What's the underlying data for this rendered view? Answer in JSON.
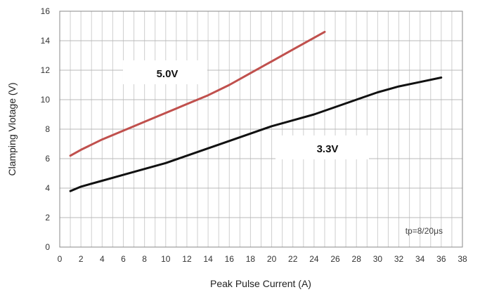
{
  "chart_data": {
    "type": "line",
    "title": "",
    "xlabel": "Peak Pulse Current (A)",
    "ylabel": "Clamping Vlotage (V)",
    "xlim": [
      0,
      38
    ],
    "ylim": [
      0,
      16
    ],
    "x_ticks": [
      0,
      2,
      4,
      6,
      8,
      10,
      12,
      14,
      16,
      18,
      20,
      22,
      24,
      26,
      28,
      30,
      32,
      34,
      36,
      38
    ],
    "y_ticks": [
      0,
      2,
      4,
      6,
      8,
      10,
      12,
      14,
      16
    ],
    "x_minor_step": 1,
    "grid": true,
    "annotation": "tp=8/20μs",
    "series": [
      {
        "name": "5.0V",
        "color": "#c0504d",
        "x": [
          1,
          2,
          4,
          6,
          8,
          10,
          12,
          14,
          16,
          18,
          20,
          22,
          24,
          25
        ],
        "y": [
          6.2,
          6.6,
          7.3,
          7.9,
          8.5,
          9.1,
          9.7,
          10.3,
          11.0,
          11.8,
          12.6,
          13.4,
          14.2,
          14.6
        ]
      },
      {
        "name": "3.3V",
        "color": "#111111",
        "x": [
          1,
          2,
          4,
          6,
          8,
          10,
          12,
          14,
          16,
          18,
          20,
          22,
          24,
          26,
          28,
          30,
          32,
          34,
          36
        ],
        "y": [
          3.8,
          4.1,
          4.5,
          4.9,
          5.3,
          5.7,
          6.2,
          6.7,
          7.2,
          7.7,
          8.2,
          8.6,
          9.0,
          9.5,
          10.0,
          10.5,
          10.9,
          11.2,
          11.5
        ]
      }
    ]
  }
}
